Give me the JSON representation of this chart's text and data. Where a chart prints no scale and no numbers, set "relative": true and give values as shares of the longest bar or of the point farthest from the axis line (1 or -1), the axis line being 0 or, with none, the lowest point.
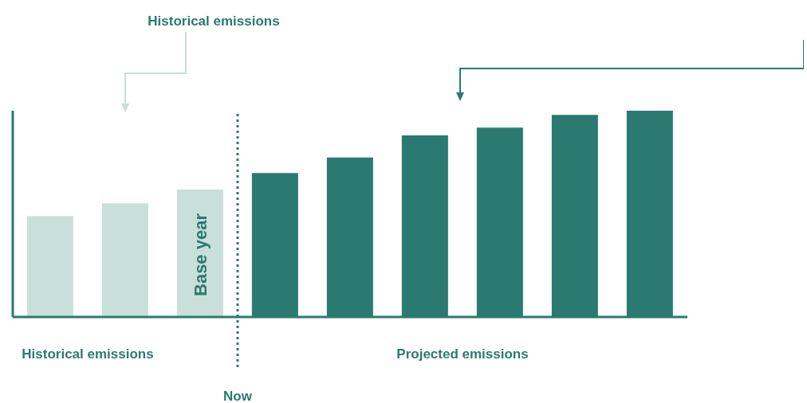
{
  "chart_data": {
    "type": "bar",
    "relative": true,
    "categories": [
      null,
      null,
      null,
      null,
      null,
      null,
      null,
      null,
      null
    ],
    "values": [
      0.489,
      0.551,
      0.618,
      0.698,
      0.773,
      0.88,
      0.918,
      0.98,
      1
    ],
    "colors": [
      "#c8e0d9",
      "#c8e0d9",
      "#c8e0d9",
      "#2b7a72",
      "#2b7a72",
      "#2b7a72",
      "#2b7a72",
      "#2b7a72",
      "#2b7a72"
    ],
    "annotations": [
      "Historical emissions",
      "Historical emissions",
      "Projected emissions",
      "Base year",
      "Now"
    ],
    "grid": false,
    "legend": false
  }
}
